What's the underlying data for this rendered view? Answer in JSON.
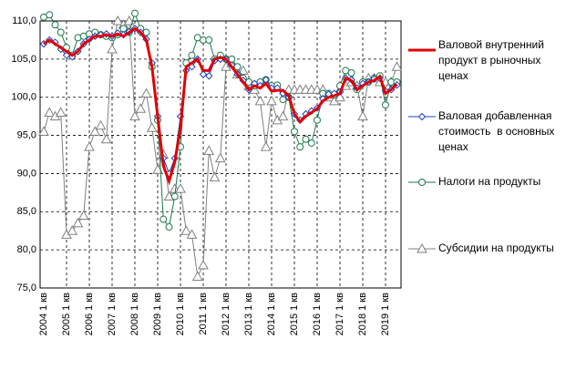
{
  "chart_data": {
    "type": "line",
    "categories": [
      "2004 1 кв",
      null,
      null,
      null,
      "2005 1 кв",
      null,
      null,
      null,
      "2006 1 кв",
      null,
      null,
      null,
      "2007 1 кв",
      null,
      null,
      null,
      "2008 1 кв",
      null,
      null,
      null,
      "2009 1 кв",
      null,
      null,
      null,
      "2010 1 кв",
      null,
      null,
      null,
      "2011 1 кв",
      null,
      null,
      null,
      "2012 1 кв",
      null,
      null,
      null,
      "2013 1 кв",
      null,
      null,
      null,
      "2014 1 кв",
      null,
      null,
      null,
      "2015 1 кв",
      null,
      null,
      null,
      "2016 1 кв",
      null,
      null,
      null,
      "2017 1 кв",
      null,
      null,
      null,
      "2018 1 кв",
      null,
      null,
      null,
      "2019 1 кв",
      null,
      null
    ],
    "ylim": [
      75,
      110
    ],
    "yticks": [
      {
        "value": 75,
        "label": "75,0"
      },
      {
        "value": 80,
        "label": "80,0"
      },
      {
        "value": 85,
        "label": "85,0"
      },
      {
        "value": 90,
        "label": "90,0"
      },
      {
        "value": 95,
        "label": "95,0"
      },
      {
        "value": 100,
        "label": "100,0"
      },
      {
        "value": 105,
        "label": "105,0"
      },
      {
        "value": 110,
        "label": "110,0"
      }
    ],
    "grid": true,
    "series": [
      {
        "name": "Валовой внутренний продукт в рыночных ценах",
        "color": "#e00000",
        "marker": "none",
        "line_width": 3,
        "values": [
          107,
          107.5,
          107,
          106.5,
          106,
          105.5,
          106,
          107,
          107.5,
          108,
          108,
          108.2,
          108,
          108.3,
          108,
          108.5,
          109,
          108.5,
          107.5,
          104,
          97.5,
          91,
          89,
          91.5,
          96,
          104,
          104.5,
          105,
          103.5,
          103.5,
          105,
          105.2,
          105,
          104,
          103,
          102,
          101,
          101.5,
          101.2,
          101.8,
          100.8,
          100.9,
          100.9,
          100.2,
          97.8,
          96.8,
          97.5,
          98,
          98.5,
          99.5,
          100,
          100.2,
          100.5,
          102.5,
          102.2,
          101,
          101.5,
          102,
          102.2,
          102.7,
          100.5,
          101,
          101.7
        ]
      },
      {
        "name": "Валовая добавленная стоимость  в основных ценах",
        "color": "#1f3fbf",
        "marker": "diamond",
        "line_width": 1,
        "values": [
          107,
          107.5,
          107.2,
          106.3,
          105.5,
          105.3,
          106,
          107,
          107.6,
          108,
          108.2,
          108.3,
          108,
          108.4,
          108.2,
          108.6,
          109,
          108.5,
          107.6,
          104.5,
          97.5,
          92,
          90,
          92,
          97.5,
          103.5,
          104,
          105,
          103,
          102.8,
          104.8,
          105,
          105,
          104.2,
          103,
          102.2,
          101,
          101.8,
          101.5,
          102.3,
          101.2,
          101.2,
          100.5,
          100,
          97.8,
          97,
          97.8,
          98.2,
          98.6,
          99.8,
          100.4,
          100.5,
          100.7,
          102.5,
          102.3,
          101.2,
          101.8,
          102,
          102.4,
          102.5,
          100.8,
          101,
          101.6
        ]
      },
      {
        "name": "Налоги на продукты",
        "color": "#1a7a4a",
        "marker": "circle",
        "line_width": 1,
        "values": [
          110.5,
          110.8,
          109.5,
          108.5,
          106.5,
          105.5,
          107.8,
          108,
          108.3,
          108.5,
          108.2,
          108,
          107.8,
          108.2,
          109,
          108.5,
          111,
          109,
          108.5,
          104,
          97,
          84,
          83,
          87,
          93.5,
          104.5,
          105.5,
          107.8,
          107.5,
          107.5,
          105,
          105.5,
          105,
          105,
          104,
          102.5,
          102,
          101.5,
          102,
          102.3,
          101.5,
          101.6,
          99.7,
          100,
          95.5,
          93.5,
          94.5,
          94,
          97,
          100.5,
          100.5,
          100.3,
          101.5,
          103.5,
          103.2,
          101,
          102,
          102,
          102.5,
          102.8,
          99,
          102,
          102
        ]
      },
      {
        "name": "Субсидии на продукты",
        "color": "#808080",
        "marker": "triangle",
        "line_width": 1,
        "values": [
          95.5,
          98,
          97.5,
          98,
          82,
          82.5,
          83.5,
          84.5,
          93.5,
          95.5,
          96.3,
          94.5,
          106.3,
          110,
          109.5,
          110,
          97.5,
          98.5,
          100.5,
          96,
          90.5,
          92.5,
          87,
          88,
          88,
          82.5,
          82,
          76.5,
          78,
          93,
          89.5,
          92,
          104,
          104.5,
          103,
          103.5,
          101.5,
          101,
          99.5,
          93.5,
          99.5,
          97,
          97.5,
          101,
          101,
          101,
          101,
          101,
          101,
          101,
          100,
          99.5,
          100,
          101.5,
          102,
          101.5,
          97.5,
          102.5,
          102.5,
          102,
          102,
          102,
          104
        ]
      }
    ]
  }
}
